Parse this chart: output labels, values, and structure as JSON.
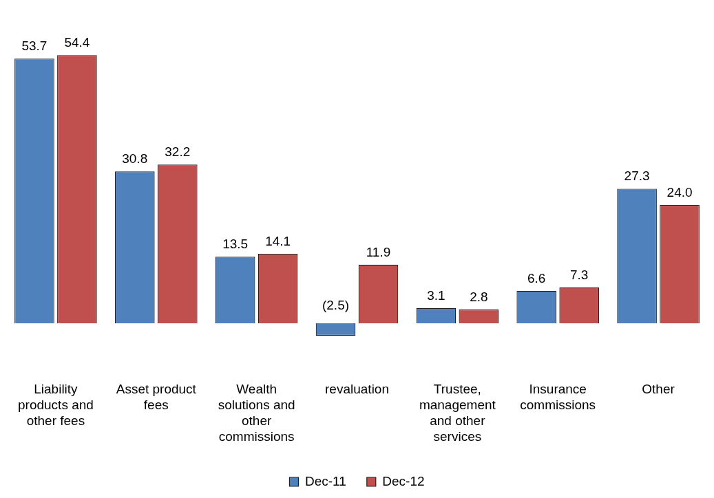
{
  "chart_data": {
    "type": "bar",
    "categories": [
      "Liability products and other fees",
      "Asset product fees",
      "Wealth solutions and other commissions",
      "revaluation",
      "Trustee, management and other services",
      "Insurance commissions",
      "Other"
    ],
    "series": [
      {
        "name": "Dec-11",
        "color": "#4f81bd",
        "values": [
          53.7,
          30.8,
          13.5,
          -2.5,
          3.1,
          6.6,
          27.3
        ],
        "value_labels": [
          "53.7",
          "30.8",
          "13.5",
          "(2.5)",
          "3.1",
          "6.6",
          "27.3"
        ]
      },
      {
        "name": "Dec-12",
        "color": "#c0504d",
        "values": [
          54.4,
          32.2,
          14.1,
          11.9,
          2.8,
          7.3,
          24.0
        ],
        "value_labels": [
          "54.4",
          "32.2",
          "14.1",
          "11.9",
          "2.8",
          "7.3",
          "24.0"
        ]
      }
    ],
    "legend": "bottom",
    "tick_labels": "x",
    "grid": false
  }
}
